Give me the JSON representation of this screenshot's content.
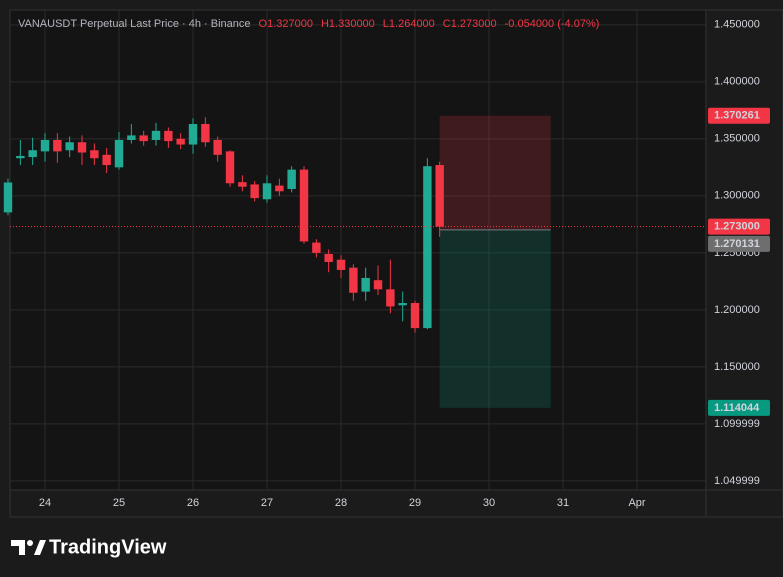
{
  "chart_data": {
    "type": "candlestick",
    "title": "VANAUSDT Perpetual Last Price · 4h · Binance",
    "ohlc_labels": [
      "O1.327000",
      "H1.330000",
      "L1.264000",
      "C1.273000",
      "-0.054000 (-4.07%)"
    ],
    "x": [
      23.5,
      23.667,
      23.833,
      24,
      24.167,
      24.333,
      24.5,
      24.667,
      24.833,
      25,
      25.167,
      25.333,
      25.5,
      25.667,
      25.833,
      26,
      26.167,
      26.333,
      26.5,
      26.667,
      26.833,
      27,
      27.167,
      27.333,
      27.5,
      27.667,
      27.833,
      28,
      28.167,
      28.333,
      28.5,
      28.667,
      28.833,
      29,
      29.167,
      29.333
    ],
    "open": [
      1.2855,
      1.333,
      1.334,
      1.339,
      1.349,
      1.34,
      1.347,
      1.34,
      1.336,
      1.325,
      1.349,
      1.353,
      1.349,
      1.357,
      1.35,
      1.345,
      1.363,
      1.349,
      1.339,
      1.312,
      1.31,
      1.297,
      1.309,
      1.306,
      1.323,
      1.259,
      1.249,
      1.244,
      1.237,
      1.216,
      1.226,
      1.218,
      1.204,
      1.206,
      1.184,
      1.327
    ],
    "high": [
      1.315,
      1.349,
      1.351,
      1.355,
      1.355,
      1.352,
      1.353,
      1.346,
      1.342,
      1.356,
      1.363,
      1.357,
      1.364,
      1.36,
      1.355,
      1.368,
      1.369,
      1.352,
      1.34,
      1.318,
      1.313,
      1.318,
      1.315,
      1.326,
      1.326,
      1.262,
      1.253,
      1.248,
      1.24,
      1.237,
      1.239,
      1.244,
      1.216,
      1.208,
      1.333,
      1.33
    ],
    "low": [
      1.283,
      1.327,
      1.327,
      1.33,
      1.329,
      1.334,
      1.327,
      1.327,
      1.32,
      1.323,
      1.346,
      1.344,
      1.344,
      1.342,
      1.341,
      1.337,
      1.343,
      1.33,
      1.308,
      1.304,
      1.295,
      1.294,
      1.3,
      1.303,
      1.258,
      1.246,
      1.233,
      1.228,
      1.208,
      1.208,
      1.213,
      1.197,
      1.19,
      1.18,
      1.183,
      1.264
    ],
    "close": [
      1.3117,
      1.335,
      1.34,
      1.349,
      1.339,
      1.347,
      1.338,
      1.333,
      1.327,
      1.349,
      1.353,
      1.348,
      1.357,
      1.348,
      1.345,
      1.363,
      1.347,
      1.336,
      1.311,
      1.308,
      1.298,
      1.311,
      1.304,
      1.323,
      1.26,
      1.25,
      1.242,
      1.235,
      1.215,
      1.228,
      1.218,
      1.203,
      1.206,
      1.184,
      1.326,
      1.273
    ],
    "up_color": "#22ab94",
    "down_color": "#f23645",
    "xlim": [
      23.527,
      32.932
    ],
    "xticks": [
      24,
      25,
      26,
      27,
      28,
      29,
      30,
      31,
      {
        "value": 32,
        "label": "Apr"
      }
    ],
    "ylim": [
      1.042,
      1.463
    ],
    "yticks": [
      {
        "value": 1.45,
        "label": "1.450000"
      },
      {
        "value": 1.4,
        "label": "1.400000"
      },
      {
        "value": 1.35,
        "label": "1.350000"
      },
      {
        "value": 1.3,
        "label": "1.300000"
      },
      {
        "value": 1.25,
        "label": "1.250000"
      },
      {
        "value": 1.2,
        "label": "1.200000"
      },
      {
        "value": 1.15,
        "label": "1.150000"
      },
      1.099999,
      1.049999
    ],
    "grid": true,
    "last_price": {
      "value": 1.273,
      "label": "1.273000"
    },
    "position": {
      "x": [
        29.333,
        30.833
      ],
      "target": 1.370261,
      "entry": 1.270131,
      "stop": 1.114044
    },
    "brand": "TradingView"
  }
}
